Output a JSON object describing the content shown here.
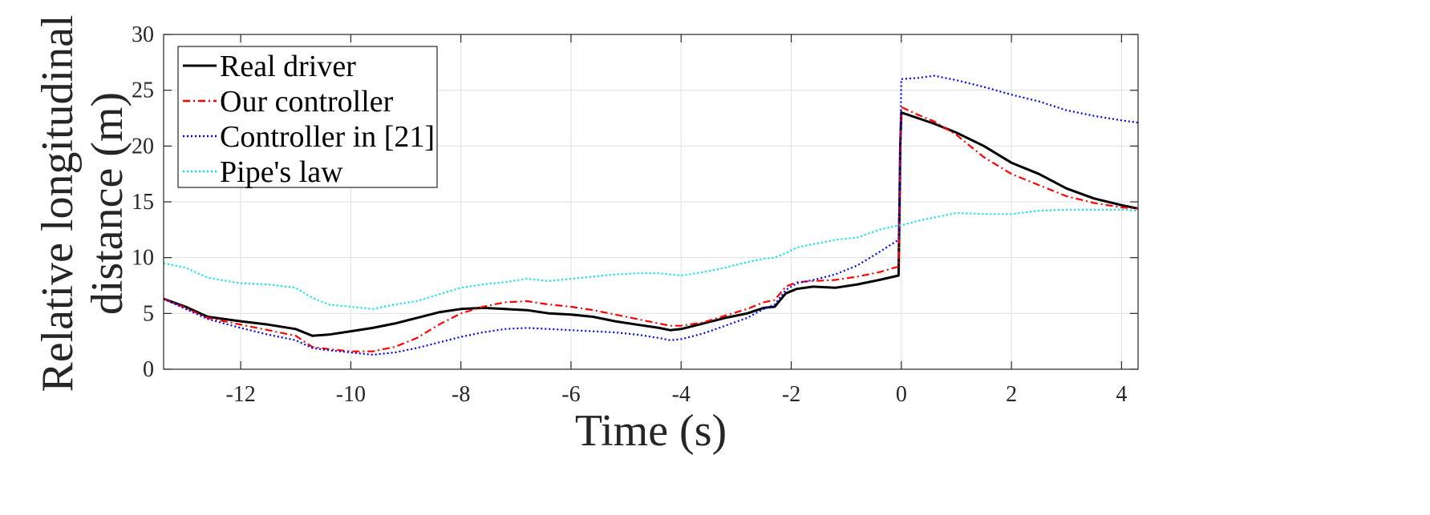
{
  "chart_data": {
    "type": "line",
    "xlabel": "Time (s)",
    "ylabel": [
      "Relative longitudinal",
      "distance (m)"
    ],
    "xlim": [
      -13.4,
      4.3
    ],
    "ylim": [
      0,
      30
    ],
    "xticks": [
      -12,
      -10,
      -8,
      -6,
      -4,
      -2,
      0,
      2,
      4
    ],
    "yticks": [
      0,
      5,
      10,
      15,
      20,
      25,
      30
    ],
    "xtick_labels": [
      "-12",
      "-10",
      "-8",
      "-6",
      "-4",
      "-2",
      "0",
      "2",
      "4"
    ],
    "ytick_labels": [
      "0",
      "5",
      "10",
      "15",
      "20",
      "25",
      "30"
    ],
    "grid": true,
    "legend_position": "top-left",
    "series": [
      {
        "name": "Real driver",
        "color": "#000000",
        "style": "solid",
        "x": [
          -13.4,
          -13.0,
          -12.6,
          -12.0,
          -11.5,
          -11.0,
          -10.7,
          -10.4,
          -10.0,
          -9.6,
          -9.2,
          -8.8,
          -8.4,
          -8.0,
          -7.6,
          -7.2,
          -6.8,
          -6.4,
          -6.0,
          -5.6,
          -5.2,
          -4.8,
          -4.4,
          -4.2,
          -4.0,
          -3.6,
          -3.2,
          -2.8,
          -2.5,
          -2.3,
          -2.1,
          -1.9,
          -1.6,
          -1.2,
          -0.8,
          -0.4,
          -0.05,
          -0.02,
          0.0,
          0.3,
          0.6,
          1.0,
          1.5,
          2.0,
          2.5,
          3.0,
          3.5,
          4.0,
          4.3
        ],
        "y": [
          6.3,
          5.6,
          4.7,
          4.3,
          4.0,
          3.6,
          3.0,
          3.1,
          3.4,
          3.7,
          4.1,
          4.6,
          5.1,
          5.4,
          5.5,
          5.4,
          5.3,
          5.0,
          4.9,
          4.7,
          4.3,
          4.0,
          3.7,
          3.5,
          3.6,
          4.1,
          4.6,
          5.0,
          5.5,
          5.6,
          6.8,
          7.2,
          7.4,
          7.3,
          7.6,
          8.0,
          8.4,
          20.0,
          23.0,
          22.5,
          22.0,
          21.2,
          20.0,
          18.5,
          17.5,
          16.2,
          15.3,
          14.7,
          14.4
        ]
      },
      {
        "name": "Our controller",
        "color": "#ff0000",
        "style": "dashdot",
        "x": [
          -13.4,
          -13.0,
          -12.6,
          -12.0,
          -11.5,
          -11.0,
          -10.7,
          -10.4,
          -10.0,
          -9.6,
          -9.2,
          -8.8,
          -8.4,
          -8.0,
          -7.6,
          -7.2,
          -6.8,
          -6.4,
          -6.0,
          -5.6,
          -5.2,
          -4.8,
          -4.4,
          -4.2,
          -4.0,
          -3.6,
          -3.2,
          -2.8,
          -2.5,
          -2.3,
          -2.1,
          -1.9,
          -1.6,
          -1.2,
          -0.8,
          -0.4,
          -0.05,
          -0.02,
          0.0,
          0.3,
          0.6,
          1.0,
          1.5,
          2.0,
          2.5,
          3.0,
          3.5,
          4.0,
          4.3
        ],
        "y": [
          6.3,
          5.5,
          4.6,
          4.0,
          3.5,
          3.0,
          2.0,
          1.8,
          1.6,
          1.6,
          2.0,
          2.8,
          4.0,
          5.0,
          5.6,
          6.0,
          6.1,
          5.8,
          5.6,
          5.3,
          4.9,
          4.5,
          4.1,
          3.9,
          3.9,
          4.2,
          4.8,
          5.4,
          6.0,
          6.2,
          7.4,
          7.8,
          7.9,
          8.0,
          8.3,
          8.7,
          9.2,
          20.0,
          23.5,
          22.8,
          22.2,
          21.0,
          19.0,
          17.5,
          16.5,
          15.5,
          14.9,
          14.5,
          14.4
        ]
      },
      {
        "name": "Controller in [21]",
        "color": "#0000ff",
        "style": "dotted",
        "x": [
          -13.4,
          -13.0,
          -12.6,
          -12.0,
          -11.5,
          -11.0,
          -10.7,
          -10.4,
          -10.0,
          -9.6,
          -9.2,
          -8.8,
          -8.4,
          -8.0,
          -7.6,
          -7.2,
          -6.8,
          -6.4,
          -6.0,
          -5.6,
          -5.2,
          -4.8,
          -4.4,
          -4.2,
          -4.0,
          -3.6,
          -3.2,
          -2.8,
          -2.5,
          -2.3,
          -2.1,
          -1.9,
          -1.6,
          -1.2,
          -0.8,
          -0.4,
          -0.05,
          -0.02,
          0.0,
          0.3,
          0.6,
          1.0,
          1.5,
          2.0,
          2.5,
          3.0,
          3.5,
          4.0,
          4.3
        ],
        "y": [
          6.3,
          5.4,
          4.5,
          3.7,
          3.1,
          2.6,
          1.9,
          1.7,
          1.5,
          1.3,
          1.5,
          1.9,
          2.4,
          2.9,
          3.3,
          3.6,
          3.7,
          3.6,
          3.5,
          3.4,
          3.3,
          3.1,
          2.8,
          2.6,
          2.7,
          3.2,
          3.9,
          4.6,
          5.4,
          5.8,
          7.1,
          7.7,
          8.0,
          8.5,
          9.3,
          10.5,
          11.6,
          20.0,
          26.0,
          26.1,
          26.3,
          25.9,
          25.3,
          24.6,
          24.0,
          23.2,
          22.7,
          22.3,
          22.1
        ]
      },
      {
        "name": "Pipe's law",
        "color": "#00e5e5",
        "style": "dotted",
        "x": [
          -13.4,
          -13.0,
          -12.6,
          -12.0,
          -11.5,
          -11.0,
          -10.7,
          -10.4,
          -10.0,
          -9.6,
          -9.2,
          -8.8,
          -8.4,
          -8.0,
          -7.6,
          -7.2,
          -6.8,
          -6.4,
          -6.0,
          -5.6,
          -5.2,
          -4.8,
          -4.4,
          -4.2,
          -4.0,
          -3.6,
          -3.2,
          -2.8,
          -2.5,
          -2.3,
          -2.1,
          -1.9,
          -1.6,
          -1.2,
          -0.8,
          -0.4,
          -0.05,
          -0.02,
          0.0,
          0.3,
          0.6,
          1.0,
          1.5,
          2.0,
          2.5,
          3.0,
          3.5,
          4.0,
          4.3
        ],
        "y": [
          9.5,
          9.1,
          8.2,
          7.7,
          7.6,
          7.3,
          6.4,
          5.8,
          5.6,
          5.4,
          5.8,
          6.1,
          6.7,
          7.3,
          7.6,
          7.8,
          8.1,
          7.9,
          8.1,
          8.3,
          8.5,
          8.6,
          8.6,
          8.5,
          8.4,
          8.7,
          9.1,
          9.6,
          9.9,
          10.0,
          10.4,
          10.9,
          11.2,
          11.6,
          11.8,
          12.5,
          12.9,
          12.9,
          12.9,
          13.3,
          13.6,
          14.0,
          13.9,
          13.9,
          14.2,
          14.3,
          14.3,
          14.3,
          14.2
        ]
      }
    ]
  }
}
